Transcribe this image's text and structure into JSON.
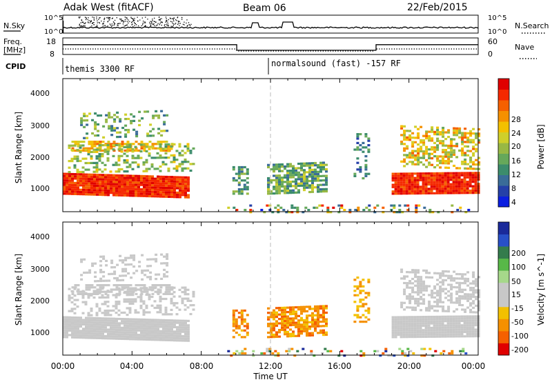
{
  "header": {
    "site": "Adak West (fitACF)",
    "beam": "Beam 06",
    "date": "22/Feb/2015"
  },
  "top_panel": {
    "left_label": "N.Sky",
    "left_ticks": [
      "10^5",
      "10^0"
    ],
    "right_label": "N.Search",
    "right_ticks": [
      "10^5",
      "10^0"
    ]
  },
  "freq_panel": {
    "left_label_1": "Freq.",
    "left_label_2": "[MHz]",
    "left_ticks": [
      "18",
      "8"
    ],
    "right_label": "Nave",
    "right_ticks": [
      "60",
      "0"
    ]
  },
  "cpid_panel": {
    "label": "CPID",
    "mode_1": "themis 3300 RF",
    "mode_2": "normalsound (fast) -157 RF"
  },
  "range_panels": {
    "ylabel": "Slant Range [km]",
    "y_ticks": [
      "4000",
      "3000",
      "2000",
      "1000"
    ],
    "x_ticks": [
      "00:00",
      "04:00",
      "08:00",
      "12:00",
      "16:00",
      "20:00",
      "00:00"
    ],
    "xlabel": "Time UT"
  },
  "power_scale": {
    "title": "Power [dB]",
    "ticks": [
      "28",
      "24",
      "20",
      "16",
      "12",
      "8",
      "4"
    ],
    "colors": [
      "#0b1ee0",
      "#2540a8",
      "#3a6c98",
      "#3c8c6c",
      "#66a85a",
      "#98b844",
      "#cfcf2a",
      "#f3c000",
      "#f59000",
      "#f56000",
      "#f52800",
      "#e00000"
    ]
  },
  "velocity_scale": {
    "title": "Velocity [m s^-1]",
    "ticks": [
      "200",
      "100",
      "50",
      "15",
      "-15",
      "-50",
      "-100",
      "-200"
    ],
    "colors": [
      "#1a2a9a",
      "#2850c8",
      "#347c4c",
      "#58b848",
      "#a6d88a",
      "#c8c8c8",
      "#c8c8c8",
      "#f3c000",
      "#f59000",
      "#f56000",
      "#e00000"
    ]
  },
  "chart_data": [
    {
      "type": "line",
      "title": "N.Sky / N.Search",
      "x_range": [
        0,
        24
      ],
      "x_unit": "hours UT",
      "log_scale": true
    },
    {
      "type": "line",
      "title": "Freq. / Nave",
      "freq_mhz": {
        "x": [
          0,
          10.05,
          10.05,
          18.1,
          18.1,
          24
        ],
        "y": [
          14,
          14,
          10,
          10,
          14,
          14
        ]
      },
      "nave": {
        "x": [
          0,
          24
        ],
        "y": [
          15,
          15
        ]
      }
    },
    {
      "type": "heatmap",
      "title": "Power [dB]",
      "ylabel": "Slant Range [km]",
      "xlabel": "Time UT",
      "ylim": [
        180,
        4500
      ],
      "xlim": [
        0,
        24
      ],
      "clim": [
        0,
        30
      ]
    },
    {
      "type": "heatmap",
      "title": "Velocity [m s^-1]",
      "ylabel": "Slant Range [km]",
      "xlabel": "Time UT",
      "ylim": [
        180,
        4500
      ],
      "xlim": [
        0,
        24
      ],
      "clim": [
        -250,
        250
      ]
    }
  ]
}
